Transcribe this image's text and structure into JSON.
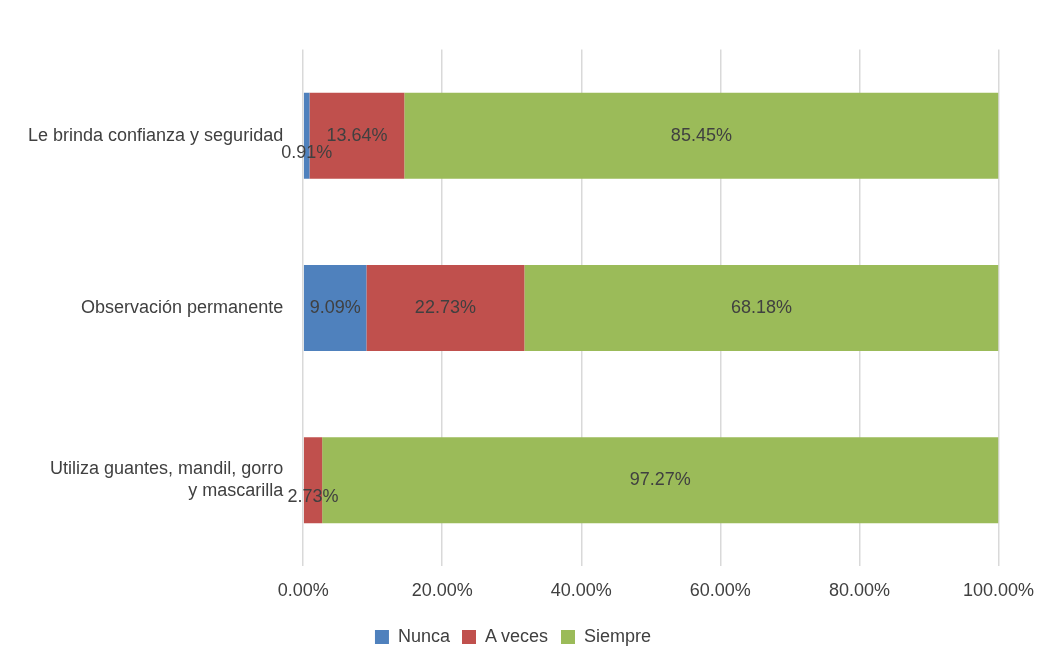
{
  "chart_data": {
    "type": "bar",
    "orientation": "horizontal",
    "stacked": true,
    "categories": [
      "Le brinda confianza y seguridad",
      "Observación permanente",
      "Utiliza guantes, mandil, gorro y mascarilla"
    ],
    "series": [
      {
        "name": "Nunca",
        "color": "#4f81bd",
        "values": [
          0.91,
          9.09,
          0
        ],
        "value_labels": [
          "0.91%",
          "9.09%",
          null
        ]
      },
      {
        "name": "A veces",
        "color": "#c0504d",
        "values": [
          13.64,
          22.73,
          2.73
        ],
        "value_labels": [
          "13.64%",
          "22.73%",
          "2.73%"
        ]
      },
      {
        "name": "Siempre",
        "color": "#9bbb59",
        "values": [
          85.45,
          68.18,
          97.27
        ],
        "value_labels": [
          "85.45%",
          "68.18%",
          "97.27%"
        ]
      }
    ],
    "xlim": [
      0,
      100
    ],
    "xticks": [
      {
        "value": 0,
        "label": "0.00%"
      },
      {
        "value": 20,
        "label": "20.00%"
      },
      {
        "value": 40,
        "label": "40.00%"
      },
      {
        "value": 60,
        "label": "60.00%"
      },
      {
        "value": 80,
        "label": "80.00%"
      },
      {
        "value": 100,
        "label": "100.00%"
      }
    ],
    "grid": "x",
    "legend": "bottom"
  }
}
